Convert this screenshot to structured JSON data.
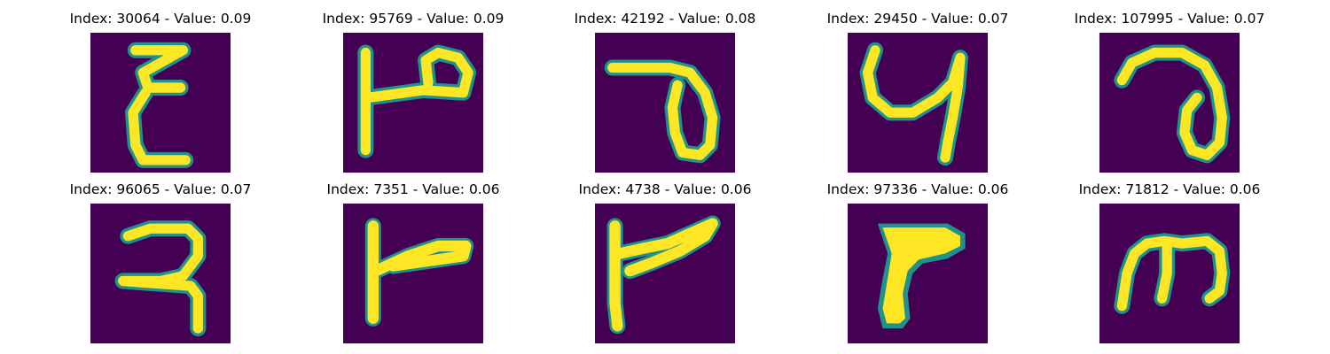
{
  "figure": {
    "colors": {
      "background": "#440154",
      "edge": "#21918c",
      "core": "#fde725"
    },
    "panels": [
      {
        "title": "Index: 30064 - Value: 0.09",
        "glyph": "epsilon-like-character"
      },
      {
        "title": "Index: 95769 - Value: 0.09",
        "glyph": "p-like-character"
      },
      {
        "title": "Index: 42192 - Value: 0.08",
        "glyph": "loop-character"
      },
      {
        "title": "Index: 29450 - Value: 0.07",
        "glyph": "u-hook-character"
      },
      {
        "title": "Index: 107995 - Value: 0.07",
        "glyph": "curl-character"
      },
      {
        "title": "Index: 96065 - Value: 0.07",
        "glyph": "three-like-character"
      },
      {
        "title": "Index: 7351 - Value: 0.06",
        "glyph": "t-bar-character"
      },
      {
        "title": "Index: 4738 - Value: 0.06",
        "glyph": "sickle-character"
      },
      {
        "title": "Index: 97336 - Value: 0.06",
        "glyph": "block-flag-character"
      },
      {
        "title": "Index: 71812 - Value: 0.06",
        "glyph": "m-like-character"
      }
    ]
  }
}
